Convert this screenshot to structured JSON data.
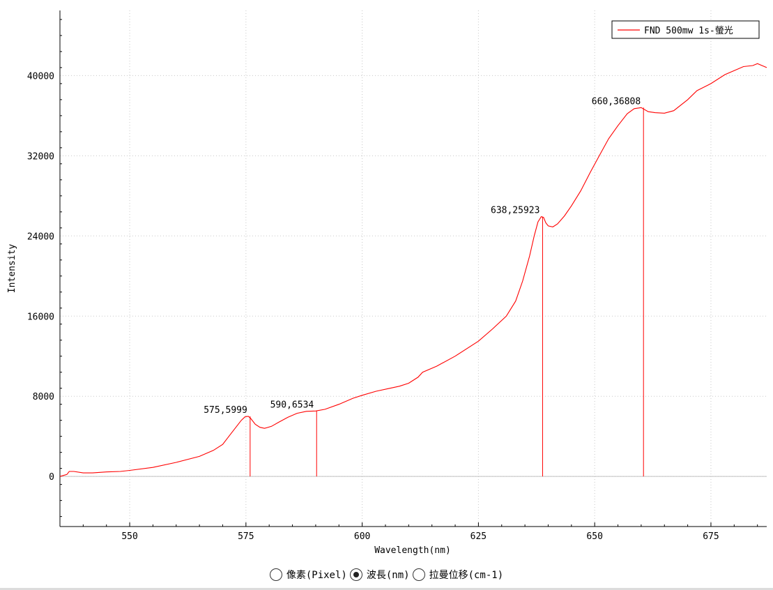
{
  "chart_data": {
    "type": "line",
    "title": "",
    "xlabel": "Wavelength(nm)",
    "ylabel": "Intensity",
    "xlim": [
      535,
      687
    ],
    "ylim": [
      -5000,
      46500
    ],
    "xticks": [
      550,
      575,
      600,
      625,
      650,
      675
    ],
    "yticks": [
      0,
      8000,
      16000,
      24000,
      32000,
      40000
    ],
    "grid": true,
    "legend": {
      "placement": "top-right"
    },
    "series": [
      {
        "name": "FND 500mw 1s-螢光",
        "color": "#ff0000",
        "x": [
          535,
          536.5,
          537,
          538,
          540,
          542,
          545,
          548,
          550,
          555,
          560,
          565,
          568,
          570,
          571.5,
          573,
          574,
          574.8,
          575.5,
          576,
          577,
          578,
          579,
          580.5,
          582,
          584,
          586,
          588,
          590,
          592,
          595,
          598,
          600,
          603,
          606,
          608,
          610,
          612,
          613,
          616,
          620,
          625,
          628,
          631,
          633,
          634.5,
          636,
          637,
          637.8,
          638.5,
          639,
          639.5,
          640,
          641,
          642,
          643.5,
          645,
          647,
          649,
          651,
          653,
          655,
          657,
          658.5,
          660,
          661.5,
          663,
          665,
          667,
          670,
          672,
          675,
          678,
          680,
          682,
          684,
          685,
          687
        ],
        "y": [
          0,
          200,
          500,
          500,
          350,
          350,
          450,
          500,
          600,
          900,
          1400,
          2000,
          2600,
          3200,
          4100,
          5000,
          5600,
          5950,
          5999,
          5800,
          5200,
          4900,
          4800,
          5000,
          5400,
          5900,
          6300,
          6500,
          6534,
          6700,
          7200,
          7800,
          8100,
          8500,
          8800,
          9000,
          9300,
          9900,
          10400,
          11000,
          12000,
          13500,
          14700,
          16000,
          17500,
          19500,
          22000,
          24000,
          25400,
          25923,
          25850,
          25300,
          25000,
          24900,
          25200,
          26000,
          27000,
          28500,
          30300,
          32000,
          33700,
          35000,
          36200,
          36700,
          36808,
          36400,
          36300,
          36250,
          36500,
          37600,
          38500,
          39200,
          40100,
          40500,
          40900,
          41000,
          41200,
          40800
        ]
      }
    ],
    "annotations": [
      {
        "label": "575,5999",
        "x": 575.9,
        "y": 5999
      },
      {
        "label": "590,6534",
        "x": 590.2,
        "y": 6534
      },
      {
        "label": "638,25923",
        "x": 638.8,
        "y": 25923
      },
      {
        "label": "660,36808",
        "x": 660.5,
        "y": 36808
      }
    ]
  },
  "mode_selector": {
    "options": [
      {
        "label": "像素(Pixel)",
        "selected": false
      },
      {
        "label": "波長(nm)",
        "selected": true
      },
      {
        "label": "拉曼位移(cm-1)",
        "selected": false
      }
    ]
  }
}
